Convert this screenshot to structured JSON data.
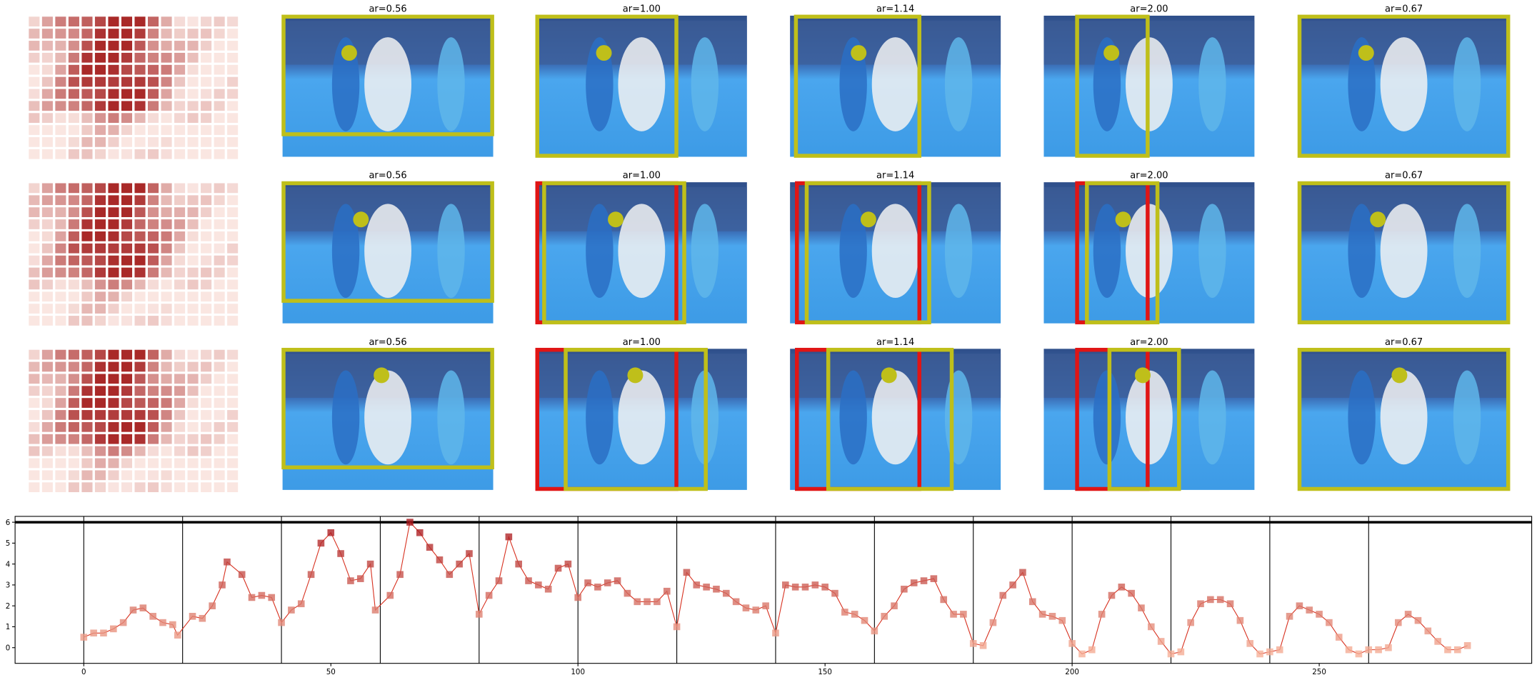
{
  "panels": {
    "titles": [
      [
        "ar=0.56",
        "ar=1.00",
        "ar=1.14",
        "ar=2.00",
        "ar=0.67"
      ],
      [
        "ar=0.56",
        "ar=1.00",
        "ar=1.14",
        "ar=2.00",
        "ar=0.67"
      ],
      [
        "ar=0.56",
        "ar=1.00",
        "ar=1.14",
        "ar=2.00",
        "ar=0.67"
      ]
    ]
  },
  "chart_data": {
    "type": "line",
    "x": [
      0,
      2,
      4,
      6,
      8,
      10,
      12,
      14,
      16,
      18,
      19,
      22,
      24,
      26,
      28,
      29,
      32,
      34,
      36,
      38,
      40,
      42,
      44,
      46,
      48,
      50,
      52,
      54,
      56,
      58,
      59,
      62,
      64,
      66,
      68,
      70,
      72,
      74,
      76,
      78,
      80,
      82,
      84,
      86,
      88,
      90,
      92,
      94,
      96,
      98,
      100,
      102,
      104,
      106,
      108,
      110,
      112,
      114,
      116,
      118,
      120,
      122,
      124,
      126,
      128,
      130,
      132,
      134,
      136,
      138,
      140,
      142,
      144,
      146,
      148,
      150,
      152,
      154,
      156,
      158,
      160,
      162,
      164,
      166,
      168,
      170,
      172,
      174,
      176,
      178,
      180,
      182,
      184,
      186,
      188,
      190,
      192,
      194,
      196,
      198,
      200,
      202,
      204,
      206,
      208,
      210,
      212,
      214,
      216,
      218,
      220,
      222,
      224,
      226,
      228,
      230,
      232,
      234,
      236,
      238,
      240,
      242,
      244,
      246,
      248,
      250,
      252,
      254,
      256,
      258,
      260,
      262,
      264,
      266,
      268,
      270,
      272,
      274,
      276,
      278,
      280
    ],
    "values": [
      0.5,
      0.7,
      0.7,
      0.9,
      1.2,
      1.8,
      1.9,
      1.5,
      1.2,
      1.1,
      0.6,
      1.5,
      1.4,
      2.0,
      3.0,
      4.1,
      3.5,
      2.4,
      2.5,
      2.4,
      1.2,
      1.8,
      2.1,
      3.5,
      5.0,
      5.5,
      4.5,
      3.2,
      3.3,
      4.0,
      1.8,
      2.5,
      3.5,
      6.0,
      5.5,
      4.8,
      4.2,
      3.5,
      4.0,
      4.5,
      1.6,
      2.5,
      3.2,
      5.3,
      4.0,
      3.2,
      3.0,
      2.8,
      3.8,
      4.0,
      2.4,
      3.1,
      2.9,
      3.1,
      3.2,
      2.6,
      2.2,
      2.2,
      2.2,
      2.7,
      1.0,
      3.6,
      3.0,
      2.9,
      2.8,
      2.6,
      2.2,
      1.9,
      1.8,
      2.0,
      0.7,
      3.0,
      2.9,
      2.9,
      3.0,
      2.9,
      2.6,
      1.7,
      1.6,
      1.3,
      0.8,
      1.5,
      2.0,
      2.8,
      3.1,
      3.2,
      3.3,
      2.3,
      1.6,
      1.6,
      0.2,
      0.1,
      1.2,
      2.5,
      3.0,
      3.6,
      2.2,
      1.6,
      1.5,
      1.3,
      0.2,
      -0.3,
      -0.1,
      1.6,
      2.5,
      2.9,
      2.6,
      1.9,
      1.0,
      0.3,
      -0.3,
      -0.2,
      1.2,
      2.1,
      2.3,
      2.3,
      2.1,
      1.3,
      0.2,
      -0.3,
      -0.2,
      -0.1,
      1.5,
      2.0,
      1.8,
      1.6,
      1.2,
      0.5,
      -0.1,
      -0.3,
      -0.1,
      -0.1,
      0.0,
      1.2,
      1.6,
      1.3,
      0.8,
      0.3,
      -0.1,
      -0.1,
      0.1
    ],
    "color": "#d7301f",
    "marker_colors": [
      "#fcbba1",
      "#a50f15"
    ],
    "xlim": [
      -13.9,
      293
    ],
    "ylim": [
      -0.75,
      6.28
    ],
    "xticks": [
      0,
      50,
      100,
      150,
      200,
      250
    ],
    "yticks": [
      0,
      1,
      2,
      3,
      4,
      5,
      6
    ],
    "vlines": [
      0,
      20,
      40,
      60,
      80,
      100,
      120,
      140,
      160,
      180,
      200,
      220,
      240,
      260
    ],
    "hline": 6
  }
}
